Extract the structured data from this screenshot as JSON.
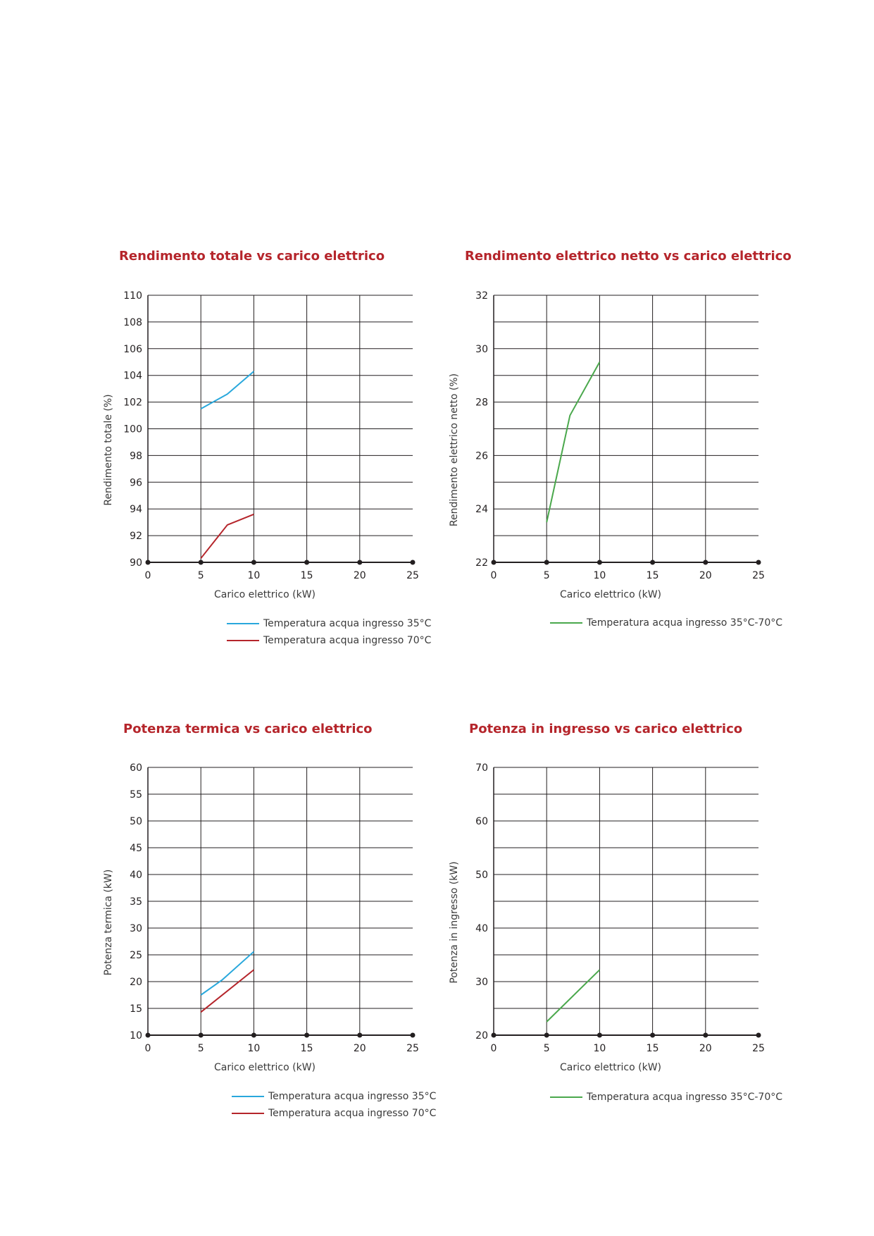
{
  "charts": [
    {
      "title": "Rendimento totale vs carico elettrico",
      "chart_data": {
        "type": "line",
        "xlabel": "Carico elettrico (kW)",
        "ylabel": "Rendimento totale (%)",
        "xlim": [
          0,
          25
        ],
        "ylim": [
          90,
          110
        ],
        "xticks": [
          0,
          5,
          10,
          15,
          20,
          25
        ],
        "yticks": [
          90,
          92,
          94,
          96,
          98,
          100,
          102,
          104,
          106,
          108,
          110
        ],
        "grid": true,
        "series": [
          {
            "name": "Temperatura acqua ingresso 35°C",
            "color": "#29a8dc",
            "x": [
              5,
              7.5,
              10
            ],
            "y": [
              101.5,
              102.6,
              104.3
            ]
          },
          {
            "name": "Temperatura acqua ingresso 70°C",
            "color": "#b5252b",
            "x": [
              5,
              7.5,
              10
            ],
            "y": [
              90.3,
              92.8,
              93.6
            ]
          }
        ]
      }
    },
    {
      "title": "Rendimento elettrico netto vs carico elettrico",
      "chart_data": {
        "type": "line",
        "xlabel": "Carico elettrico (kW)",
        "ylabel": "Rendimento elettrico netto (%)",
        "xlim": [
          0,
          25
        ],
        "ylim": [
          22,
          32
        ],
        "xticks": [
          0,
          5,
          10,
          15,
          20,
          25
        ],
        "yticks": [
          22,
          24,
          26,
          28,
          30,
          32
        ],
        "ygrid": [
          23,
          25,
          27,
          29,
          31
        ],
        "grid": true,
        "series": [
          {
            "name": "Temperatura acqua ingresso 35°C-70°C",
            "color": "#4aa84c",
            "x": [
              5,
              7.2,
              10
            ],
            "y": [
              23.5,
              27.5,
              29.5
            ]
          }
        ]
      }
    },
    {
      "title": "Potenza termica vs carico elettrico",
      "chart_data": {
        "type": "line",
        "xlabel": "Carico elettrico (kW)",
        "ylabel": "Potenza termica (kW)",
        "xlim": [
          0,
          25
        ],
        "ylim": [
          10,
          60
        ],
        "xticks": [
          0,
          5,
          10,
          15,
          20,
          25
        ],
        "yticks": [
          10,
          15,
          20,
          25,
          30,
          35,
          40,
          45,
          50,
          55,
          60
        ],
        "grid": true,
        "series": [
          {
            "name": "Temperatura acqua ingresso 35°C",
            "color": "#29a8dc",
            "x": [
              5,
              7,
              10
            ],
            "y": [
              17.5,
              20.3,
              25.6
            ]
          },
          {
            "name": "Temperatura acqua ingresso 70°C",
            "color": "#b5252b",
            "x": [
              5,
              10
            ],
            "y": [
              14.3,
              22.2
            ]
          }
        ]
      }
    },
    {
      "title": "Potenza in ingresso vs carico elettrico",
      "chart_data": {
        "type": "line",
        "xlabel": "Carico elettrico (kW)",
        "ylabel": "Potenza in ingresso (kW)",
        "xlim": [
          0,
          25
        ],
        "ylim": [
          20,
          70
        ],
        "xticks": [
          0,
          5,
          10,
          15,
          20,
          25
        ],
        "yticks": [
          20,
          30,
          40,
          50,
          60,
          70
        ],
        "ygrid": [
          25,
          35,
          45,
          55,
          65
        ],
        "grid": true,
        "series": [
          {
            "name": "Temperatura acqua ingresso 35°C-70°C",
            "color": "#4aa84c",
            "x": [
              5,
              10
            ],
            "y": [
              22.5,
              32.2
            ]
          }
        ]
      }
    }
  ]
}
